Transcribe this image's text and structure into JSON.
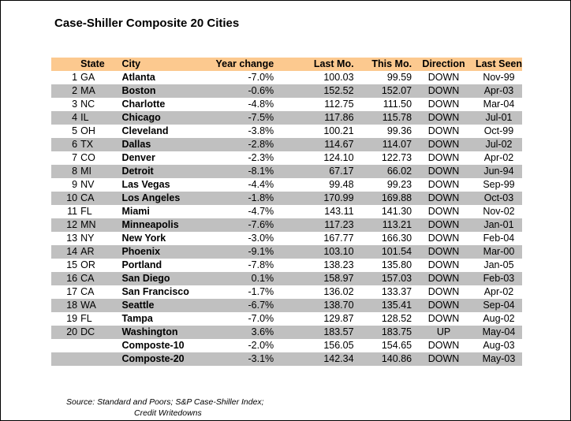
{
  "title": "Case-Shiller Composite 20 Cities",
  "columns": [
    "State",
    "City",
    "Year change",
    "Last Mo.",
    "This Mo.",
    "Direction",
    "Last Seen"
  ],
  "rows": [
    {
      "n": "1",
      "state": "GA",
      "city": "Atlanta",
      "yc": "-7.0%",
      "last": "100.03",
      "this": "99.59",
      "dir": "DOWN",
      "seen": "Nov-99"
    },
    {
      "n": "2",
      "state": "MA",
      "city": "Boston",
      "yc": "-0.6%",
      "last": "152.52",
      "this": "152.07",
      "dir": "DOWN",
      "seen": "Apr-03"
    },
    {
      "n": "3",
      "state": "NC",
      "city": "Charlotte",
      "yc": "-4.8%",
      "last": "112.75",
      "this": "111.50",
      "dir": "DOWN",
      "seen": "Mar-04"
    },
    {
      "n": "4",
      "state": "IL",
      "city": "Chicago",
      "yc": "-7.5%",
      "last": "117.86",
      "this": "115.78",
      "dir": "DOWN",
      "seen": "Jul-01"
    },
    {
      "n": "5",
      "state": "OH",
      "city": "Cleveland",
      "yc": "-3.8%",
      "last": "100.21",
      "this": "99.36",
      "dir": "DOWN",
      "seen": "Oct-99"
    },
    {
      "n": "6",
      "state": "TX",
      "city": "Dallas",
      "yc": "-2.8%",
      "last": "114.67",
      "this": "114.07",
      "dir": "DOWN",
      "seen": "Jul-02"
    },
    {
      "n": "7",
      "state": "CO",
      "city": "Denver",
      "yc": "-2.3%",
      "last": "124.10",
      "this": "122.73",
      "dir": "DOWN",
      "seen": "Apr-02"
    },
    {
      "n": "8",
      "state": "MI",
      "city": "Detroit",
      "yc": "-8.1%",
      "last": "67.17",
      "this": "66.02",
      "dir": "DOWN",
      "seen": "Jun-94"
    },
    {
      "n": "9",
      "state": "NV",
      "city": "Las Vegas",
      "yc": "-4.4%",
      "last": "99.48",
      "this": "99.23",
      "dir": "DOWN",
      "seen": "Sep-99"
    },
    {
      "n": "10",
      "state": "CA",
      "city": "Los Angeles",
      "yc": "-1.8%",
      "last": "170.99",
      "this": "169.88",
      "dir": "DOWN",
      "seen": "Oct-03"
    },
    {
      "n": "11",
      "state": "FL",
      "city": "Miami",
      "yc": "-4.7%",
      "last": "143.11",
      "this": "141.30",
      "dir": "DOWN",
      "seen": "Nov-02"
    },
    {
      "n": "12",
      "state": "MN",
      "city": "Minneapolis",
      "yc": "-7.6%",
      "last": "117.23",
      "this": "113.21",
      "dir": "DOWN",
      "seen": "Jan-01"
    },
    {
      "n": "13",
      "state": "NY",
      "city": "New York",
      "yc": "-3.0%",
      "last": "167.77",
      "this": "166.30",
      "dir": "DOWN",
      "seen": "Feb-04"
    },
    {
      "n": "14",
      "state": "AR",
      "city": "Phoenix",
      "yc": "-9.1%",
      "last": "103.10",
      "this": "101.54",
      "dir": "DOWN",
      "seen": "Mar-00"
    },
    {
      "n": "15",
      "state": "OR",
      "city": "Portland",
      "yc": "-7.8%",
      "last": "138.23",
      "this": "135.80",
      "dir": "DOWN",
      "seen": "Jan-05"
    },
    {
      "n": "16",
      "state": "CA",
      "city": "San Diego",
      "yc": "0.1%",
      "last": "158.97",
      "this": "157.03",
      "dir": "DOWN",
      "seen": "Feb-03"
    },
    {
      "n": "17",
      "state": "CA",
      "city": "San Francisco",
      "yc": "-1.7%",
      "last": "136.02",
      "this": "133.37",
      "dir": "DOWN",
      "seen": "Apr-02"
    },
    {
      "n": "18",
      "state": "WA",
      "city": "Seattle",
      "yc": "-6.7%",
      "last": "138.70",
      "this": "135.41",
      "dir": "DOWN",
      "seen": "Sep-04"
    },
    {
      "n": "19",
      "state": "FL",
      "city": "Tampa",
      "yc": "-7.0%",
      "last": "129.87",
      "this": "128.52",
      "dir": "DOWN",
      "seen": "Aug-02"
    },
    {
      "n": "20",
      "state": "DC",
      "city": "Washington",
      "yc": "3.6%",
      "last": "183.57",
      "this": "183.75",
      "dir": "UP",
      "seen": "May-04"
    },
    {
      "n": "",
      "state": "",
      "city": "Composte-10",
      "yc": "-2.0%",
      "last": "156.05",
      "this": "154.65",
      "dir": "DOWN",
      "seen": "Aug-03"
    },
    {
      "n": "",
      "state": "",
      "city": "Composte-20",
      "yc": "-3.1%",
      "last": "142.34",
      "this": "140.86",
      "dir": "DOWN",
      "seen": "May-03"
    }
  ],
  "source_line1": "Source: Standard and Poors; S&P Case-Shiller Index;",
  "source_line2": "Credit Writedowns"
}
